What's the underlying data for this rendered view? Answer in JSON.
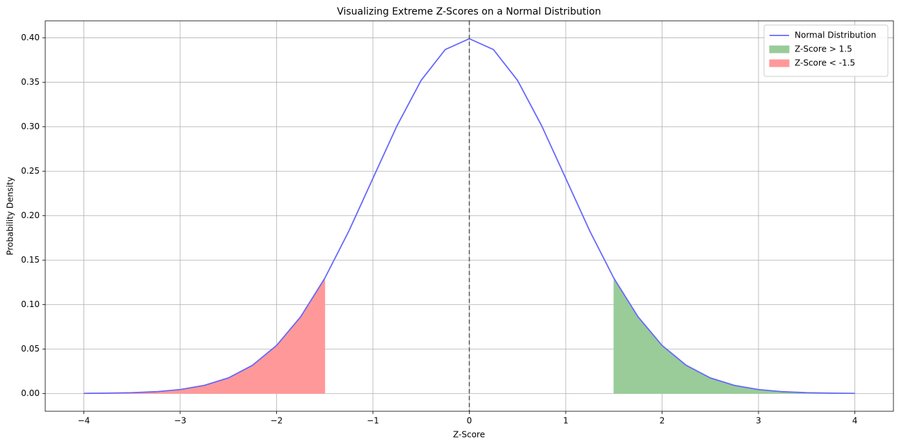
{
  "chart_data": {
    "type": "line",
    "title": "Visualizing Extreme Z-Scores on a Normal Distribution",
    "x_label": "Z-Score",
    "y_label": "Probability Density",
    "xlim": [
      -4.4,
      4.4
    ],
    "ylim": [
      -0.02,
      0.419
    ],
    "xticks": [
      {
        "value": -4,
        "label": "−4"
      },
      {
        "value": -3,
        "label": "−3"
      },
      {
        "value": -2,
        "label": "−2"
      },
      {
        "value": -1,
        "label": "−1"
      },
      0,
      1,
      2,
      3,
      4
    ],
    "yticks": [
      {
        "value": 0,
        "label": "0.00"
      },
      {
        "value": 0.05,
        "label": "0.05"
      },
      {
        "value": 0.1,
        "label": "0.10"
      },
      {
        "value": 0.15,
        "label": "0.15"
      },
      {
        "value": 0.2,
        "label": "0.20"
      },
      {
        "value": 0.25,
        "label": "0.25"
      },
      {
        "value": 0.3,
        "label": "0.30"
      },
      {
        "value": 0.35,
        "label": "0.35"
      },
      {
        "value": 0.4,
        "label": "0.40"
      }
    ],
    "grid": true,
    "legend": "upper right",
    "vline": {
      "x": 0,
      "color": "#555555"
    },
    "series": [
      {
        "name": "Normal Distribution",
        "type": "line",
        "color": "#6666ff",
        "x": [
          -4,
          -3.75,
          -3.5,
          -3.25,
          -3,
          -2.75,
          -2.5,
          -2.25,
          -2,
          -1.75,
          -1.5,
          -1.25,
          -1,
          -0.75,
          -0.5,
          -0.25,
          0,
          0.25,
          0.5,
          0.75,
          1,
          1.25,
          1.5,
          1.75,
          2,
          2.25,
          2.5,
          2.75,
          3,
          3.25,
          3.5,
          3.75,
          4
        ],
        "values": [
          0.0001,
          0.0004,
          0.0009,
          0.002,
          0.0044,
          0.0091,
          0.0175,
          0.0317,
          0.054,
          0.0863,
          0.1295,
          0.1826,
          0.242,
          0.3011,
          0.3521,
          0.3867,
          0.3989,
          0.3867,
          0.3521,
          0.3011,
          0.242,
          0.1826,
          0.1295,
          0.0863,
          0.054,
          0.0317,
          0.0175,
          0.0091,
          0.0044,
          0.002,
          0.0009,
          0.0004,
          0.0001
        ]
      },
      {
        "name": "Z-Score > 1.5",
        "type": "area",
        "color": "#99cc99",
        "x": [
          1.5,
          1.75,
          2,
          2.25,
          2.5,
          2.75,
          3,
          3.25,
          3.5,
          3.75,
          4
        ],
        "values": [
          0.1295,
          0.0863,
          0.054,
          0.0317,
          0.0175,
          0.0091,
          0.0044,
          0.002,
          0.0009,
          0.0004,
          0.0001
        ]
      },
      {
        "name": "Z-Score < -1.5",
        "type": "area",
        "color": "#ff9999",
        "x": [
          -4,
          -3.75,
          -3.5,
          -3.25,
          -3,
          -2.75,
          -2.5,
          -2.25,
          -2,
          -1.75,
          -1.5
        ],
        "values": [
          0.0001,
          0.0004,
          0.0009,
          0.002,
          0.0044,
          0.0091,
          0.0175,
          0.0317,
          0.054,
          0.0863,
          0.1295
        ]
      }
    ]
  }
}
